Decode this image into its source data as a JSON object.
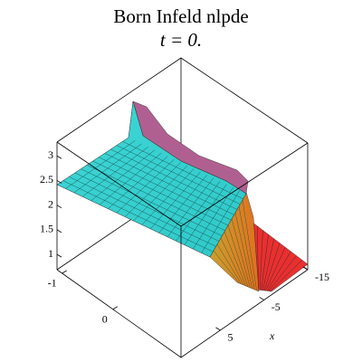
{
  "chart_data": {
    "type": "surface",
    "title": "Born  Infeld  nlpde",
    "subtitle": "t = 0.",
    "zlim": [
      0.69,
      3.28
    ],
    "zticks": [
      1,
      1.5,
      2,
      2.5,
      3
    ],
    "ylim": [
      -1.1,
      1.34
    ],
    "yticks": [
      -1,
      0
    ],
    "xlim": [
      14,
      -15
    ],
    "xticks": [
      5,
      -5,
      -15
    ],
    "x_label": "x"
  }
}
